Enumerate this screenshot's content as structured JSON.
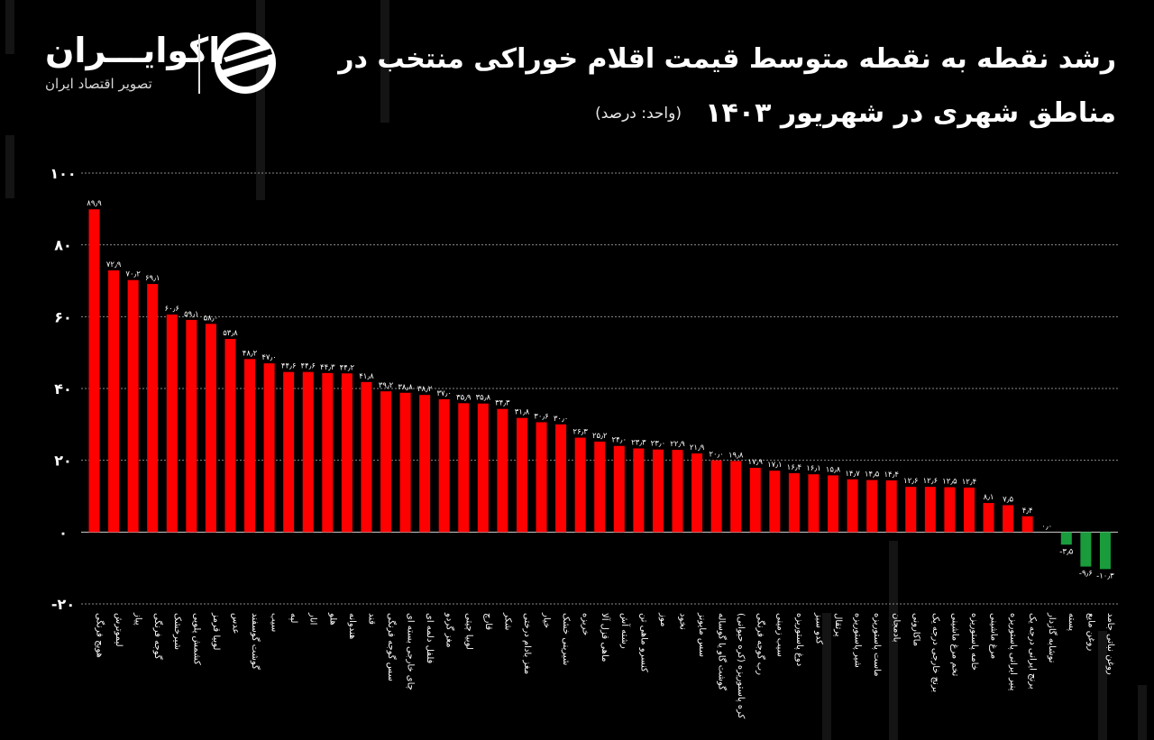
{
  "header": {
    "title_line1": "رشد نقطه به نقطه متوسط قیمت اقلام خوراکی منتخب در",
    "title_line2": "مناطق شهری در شهریور ۱۴۰۳",
    "unit": "(واحد: درصد)"
  },
  "brand": {
    "name": "اکوایـــران",
    "tagline": "تصویر اقتصاد ایران"
  },
  "colors": {
    "positive": "#ff0000",
    "negative": "#1a9c3c",
    "background": "#000000",
    "text": "#ffffff"
  },
  "chart_data": {
    "type": "bar",
    "ylim": [
      -20,
      100
    ],
    "yticks": [
      -20,
      0,
      20,
      40,
      60,
      80,
      100
    ],
    "ytick_labels": [
      "-۲۰",
      "۰",
      "۲۰",
      "۴۰",
      "۶۰",
      "۸۰",
      "۱۰۰"
    ],
    "grid": true,
    "categories": [
      "هویج فرنگی",
      "لیموترش",
      "پیاز",
      "گوجه فرنگی",
      "شیرخشک",
      "کشمش پلویی",
      "لوبیا قرمز",
      "عدس",
      "گوشت گوسفند",
      "سیب",
      "لپه",
      "انار",
      "هلو",
      "هندوانه",
      "قند",
      "سس گوجه فرنگی",
      "چای خارجی بسته ای",
      "فلفل دلمه ای",
      "مغز گردو",
      "لوبیا چیتی",
      "قارچ",
      "شکر",
      "مغز بادام درختی",
      "خیار",
      "شیرینی خشک",
      "خربزه",
      "ماهی قزل آلا",
      "رشته آش",
      "کنسرو ماهی تن",
      "موز",
      "نخود",
      "سس مایونز",
      "گوشت گاو یا گوساله",
      "کره پاستوریزه (کره حیوانی)",
      "رب گوجه فرنگی",
      "سیب زمینی",
      "دوغ پاستوریزه",
      "کدو سبز",
      "پرتقال",
      "شیر پاستوریزه",
      "ماست پاستوریزه",
      "بادمجان",
      "ماکارونی",
      "برنج خارجی درجه یک",
      "تخم مرغ ماشینی",
      "خامه پاستوریزه",
      "مرغ ماشینی",
      "پنیر ایرانی پاستوریزه",
      "برنج ایرانی درجه یک",
      "نوشابه گازدار",
      "پسته",
      "روغن مایع",
      "روغن نباتی جامد"
    ],
    "values": [
      89.9,
      72.9,
      70.2,
      69.1,
      60.6,
      59.1,
      58.0,
      53.8,
      48.2,
      47.0,
      44.6,
      44.6,
      44.3,
      44.2,
      41.8,
      39.2,
      38.8,
      38.2,
      37.0,
      35.9,
      35.8,
      34.3,
      31.8,
      30.6,
      30.0,
      26.3,
      25.2,
      24.0,
      23.3,
      23.0,
      22.9,
      21.9,
      20.0,
      19.8,
      17.9,
      17.1,
      16.4,
      16.1,
      15.8,
      14.7,
      14.5,
      14.4,
      12.6,
      12.6,
      12.5,
      12.4,
      8.1,
      7.5,
      4.4,
      0.0,
      -3.5,
      -9.6,
      -10.3
    ],
    "value_labels": [
      "۸۹٫۹",
      "۷۲٫۹",
      "۷۰٫۲",
      "۶۹٫۱",
      "۶۰٫۶",
      "۵۹٫۱",
      "۵۸٫۰",
      "۵۳٫۸",
      "۴۸٫۲",
      "۴۷٫۰",
      "۴۴٫۶",
      "۴۴٫۶",
      "۴۴٫۳",
      "۴۴٫۲",
      "۴۱٫۸",
      "۳۹٫۲",
      "۳۸٫۸",
      "۳۸٫۲",
      "۳۷٫۰",
      "۳۵٫۹",
      "۳۵٫۸",
      "۳۴٫۳",
      "۳۱٫۸",
      "۳۰٫۶",
      "۳۰٫۰",
      "۲۶٫۳",
      "۲۵٫۲",
      "۲۴٫۰",
      "۲۳٫۳",
      "۲۳٫۰",
      "۲۲٫۹",
      "۲۱٫۹",
      "۲۰٫۰",
      "۱۹٫۸",
      "۱۷٫۹",
      "۱۷٫۱",
      "۱۶٫۴",
      "۱۶٫۱",
      "۱۵٫۸",
      "۱۴٫۷",
      "۱۴٫۵",
      "۱۴٫۴",
      "۱۲٫۶",
      "۱۲٫۶",
      "۱۲٫۵",
      "۱۲٫۴",
      "۸٫۱",
      "۷٫۵",
      "۴٫۴",
      "۰٫۰",
      "-۳٫۵",
      "-۹٫۶",
      "-۱۰٫۳"
    ]
  }
}
